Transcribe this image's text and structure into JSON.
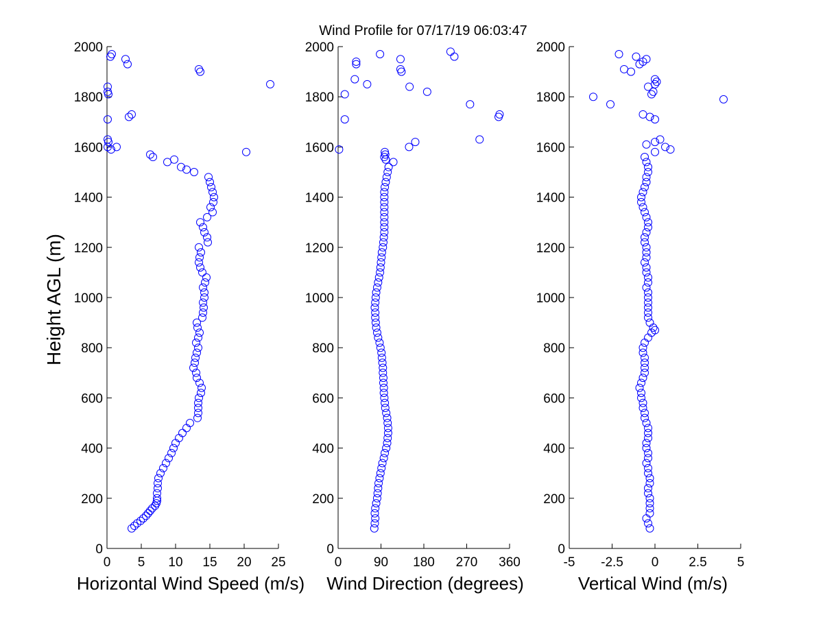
{
  "title": "Wind Profile for  07/17/19 06:03:47",
  "chart_data": [
    {
      "type": "scatter",
      "id": "speed",
      "xlabel": "Horizontal Wind Speed (m/s)",
      "ylabel": "Height AGL (m)",
      "xlim": [
        0,
        25
      ],
      "ylim": [
        0,
        2000
      ],
      "xticks": [
        0,
        5,
        10,
        15,
        20,
        25
      ],
      "xtick_labels": [
        "0",
        "5",
        "10",
        "15",
        "20",
        "25"
      ],
      "yticks": [
        0,
        200,
        400,
        600,
        800,
        1000,
        1200,
        1400,
        1600,
        1800,
        2000
      ],
      "ytick_labels": [
        "0",
        "200",
        "400",
        "600",
        "800",
        "1000",
        "1200",
        "1400",
        "1600",
        "1800",
        "2000"
      ],
      "marker_color": "#0000ff",
      "height": [
        80,
        90,
        100,
        110,
        120,
        130,
        140,
        150,
        160,
        170,
        180,
        190,
        200,
        220,
        240,
        260,
        280,
        300,
        320,
        340,
        360,
        380,
        400,
        420,
        440,
        460,
        480,
        500,
        520,
        540,
        560,
        580,
        600,
        620,
        640,
        660,
        680,
        700,
        720,
        740,
        760,
        780,
        800,
        820,
        840,
        860,
        880,
        900,
        920,
        940,
        960,
        980,
        1000,
        1020,
        1040,
        1060,
        1080,
        1100,
        1120,
        1140,
        1160,
        1180,
        1200,
        1220,
        1240,
        1260,
        1280,
        1300,
        1320,
        1340,
        1360,
        1380,
        1400,
        1420,
        1440,
        1460,
        1480,
        1500,
        1510,
        1520,
        1540,
        1550,
        1560,
        1570,
        1580,
        1590,
        1600,
        1600,
        1630,
        1620,
        1710,
        1720,
        1730,
        1810,
        1820,
        1840,
        1850,
        1900,
        1910,
        1930,
        1950,
        1960,
        1970
      ],
      "values": [
        3.6,
        4.0,
        4.4,
        4.9,
        5.3,
        5.7,
        6.0,
        6.3,
        6.6,
        7.0,
        7.2,
        7.3,
        7.3,
        7.3,
        7.4,
        7.4,
        7.5,
        7.8,
        8.2,
        8.6,
        9.0,
        9.4,
        9.7,
        10.0,
        10.5,
        11.0,
        11.6,
        12.1,
        13.2,
        13.3,
        13.3,
        13.3,
        13.4,
        13.7,
        13.8,
        13.5,
        13.1,
        13.0,
        12.6,
        12.8,
        12.9,
        13.1,
        13.3,
        13.0,
        13.3,
        13.5,
        13.2,
        13.1,
        13.9,
        14.0,
        14.1,
        14.0,
        14.2,
        14.2,
        14.0,
        14.3,
        14.5,
        13.9,
        13.6,
        13.4,
        13.5,
        13.7,
        13.4,
        14.7,
        14.6,
        14.2,
        14.0,
        13.6,
        14.6,
        15.4,
        15.1,
        15.5,
        15.6,
        15.4,
        15.2,
        15.0,
        14.8,
        12.7,
        11.6,
        10.8,
        8.8,
        9.8,
        6.7,
        6.3,
        20.3,
        0.6,
        1.4,
        0.1,
        0.1,
        0.2,
        0.1,
        3.2,
        3.6,
        0.2,
        0.1,
        0.1,
        23.8,
        13.6,
        13.4,
        3.0,
        2.7,
        0.5,
        0.7
      ]
    },
    {
      "type": "scatter",
      "id": "direction",
      "xlabel": "Wind Direction (degrees)",
      "ylabel": "",
      "xlim": [
        0,
        360
      ],
      "ylim": [
        0,
        2000
      ],
      "xticks": [
        0,
        90,
        180,
        270,
        360
      ],
      "xtick_labels": [
        "0",
        "90",
        "180",
        "270",
        "360"
      ],
      "yticks": [
        0,
        200,
        400,
        600,
        800,
        1000,
        1200,
        1400,
        1600,
        1800,
        2000
      ],
      "ytick_labels": [
        "0",
        "200",
        "400",
        "600",
        "800",
        "1000",
        "1200",
        "1400",
        "1600",
        "1800",
        "2000"
      ],
      "marker_color": "#0000ff",
      "height": [
        80,
        100,
        120,
        140,
        160,
        180,
        200,
        220,
        240,
        260,
        280,
        300,
        320,
        340,
        360,
        380,
        400,
        420,
        440,
        460,
        480,
        500,
        520,
        540,
        560,
        580,
        600,
        620,
        640,
        660,
        680,
        700,
        720,
        740,
        760,
        780,
        800,
        820,
        840,
        860,
        880,
        900,
        920,
        940,
        960,
        980,
        1000,
        1020,
        1040,
        1060,
        1080,
        1100,
        1120,
        1140,
        1160,
        1180,
        1200,
        1220,
        1240,
        1260,
        1280,
        1300,
        1320,
        1340,
        1360,
        1380,
        1400,
        1420,
        1440,
        1460,
        1480,
        1500,
        1520,
        1540,
        1550,
        1560,
        1570,
        1580,
        1590,
        1600,
        1620,
        1630,
        1710,
        1720,
        1730,
        1770,
        1810,
        1820,
        1840,
        1850,
        1870,
        1900,
        1910,
        1930,
        1940,
        1950,
        1960,
        1970,
        1980
      ],
      "values": [
        76,
        77,
        78,
        77,
        78,
        80,
        82,
        83,
        84,
        85,
        87,
        89,
        91,
        93,
        96,
        98,
        101,
        103,
        104,
        105,
        105,
        104,
        103,
        101,
        99,
        98,
        97,
        96,
        96,
        95,
        95,
        94,
        94,
        93,
        92,
        91,
        89,
        87,
        84,
        82,
        80,
        79,
        78,
        78,
        77,
        78,
        79,
        80,
        82,
        84,
        86,
        88,
        89,
        90,
        91,
        92,
        94,
        95,
        96,
        97,
        97,
        97,
        97,
        97,
        97,
        97,
        97,
        97,
        98,
        100,
        102,
        104,
        106,
        116,
        100,
        97,
        99,
        98,
        2,
        149,
        162,
        297,
        14,
        337,
        339,
        277,
        14,
        187,
        150,
        61,
        35,
        133,
        131,
        38,
        38,
        131,
        244,
        88,
        236
      ]
    },
    {
      "type": "scatter",
      "id": "vertical",
      "xlabel": "Vertical Wind (m/s)",
      "ylabel": "",
      "xlim": [
        -5,
        5
      ],
      "ylim": [
        0,
        2000
      ],
      "xticks": [
        -5,
        -2.5,
        0,
        2.5,
        5
      ],
      "xtick_labels": [
        "-5",
        "-2.5",
        "0",
        "2.5",
        "5"
      ],
      "yticks": [
        0,
        200,
        400,
        600,
        800,
        1000,
        1200,
        1400,
        1600,
        1800,
        2000
      ],
      "ytick_labels": [
        "0",
        "200",
        "400",
        "600",
        "800",
        "1000",
        "1200",
        "1400",
        "1600",
        "1800",
        "2000"
      ],
      "marker_color": "#0000ff",
      "height": [
        80,
        100,
        120,
        140,
        160,
        180,
        200,
        220,
        240,
        260,
        280,
        300,
        320,
        340,
        360,
        380,
        400,
        420,
        440,
        460,
        480,
        500,
        520,
        540,
        560,
        580,
        600,
        620,
        640,
        660,
        680,
        700,
        720,
        740,
        760,
        780,
        800,
        820,
        840,
        860,
        870,
        880,
        900,
        920,
        940,
        960,
        980,
        1000,
        1020,
        1040,
        1060,
        1080,
        1100,
        1120,
        1140,
        1160,
        1180,
        1200,
        1220,
        1240,
        1260,
        1280,
        1300,
        1320,
        1340,
        1360,
        1380,
        1400,
        1420,
        1440,
        1460,
        1480,
        1500,
        1520,
        1540,
        1560,
        1580,
        1590,
        1600,
        1610,
        1620,
        1630,
        1710,
        1720,
        1730,
        1770,
        1790,
        1800,
        1810,
        1820,
        1840,
        1850,
        1860,
        1870,
        1900,
        1910,
        1930,
        1940,
        1950,
        1960,
        1970
      ],
      "values": [
        -0.3,
        -0.4,
        -0.5,
        -0.3,
        -0.3,
        -0.3,
        -0.3,
        -0.4,
        -0.4,
        -0.3,
        -0.3,
        -0.4,
        -0.4,
        -0.5,
        -0.4,
        -0.4,
        -0.5,
        -0.5,
        -0.4,
        -0.4,
        -0.4,
        -0.5,
        -0.6,
        -0.6,
        -0.7,
        -0.7,
        -0.8,
        -0.8,
        -0.9,
        -0.8,
        -0.7,
        -0.6,
        -0.6,
        -0.6,
        -0.6,
        -0.7,
        -0.7,
        -0.6,
        -0.4,
        -0.2,
        0.0,
        -0.1,
        -0.3,
        -0.4,
        -0.4,
        -0.4,
        -0.4,
        -0.4,
        -0.4,
        -0.5,
        -0.4,
        -0.4,
        -0.5,
        -0.5,
        -0.6,
        -0.5,
        -0.5,
        -0.5,
        -0.6,
        -0.6,
        -0.5,
        -0.4,
        -0.4,
        -0.5,
        -0.6,
        -0.7,
        -0.8,
        -0.8,
        -0.7,
        -0.6,
        -0.5,
        -0.5,
        -0.4,
        -0.4,
        -0.5,
        -0.6,
        0.0,
        0.9,
        0.6,
        -0.5,
        0.0,
        0.3,
        0.0,
        -0.3,
        -0.7,
        -2.6,
        4.0,
        -3.6,
        -0.2,
        -0.1,
        -0.4,
        0.0,
        0.1,
        0.0,
        -1.4,
        -1.8,
        -0.9,
        -0.7,
        -0.5,
        -1.1,
        -2.1
      ]
    }
  ]
}
